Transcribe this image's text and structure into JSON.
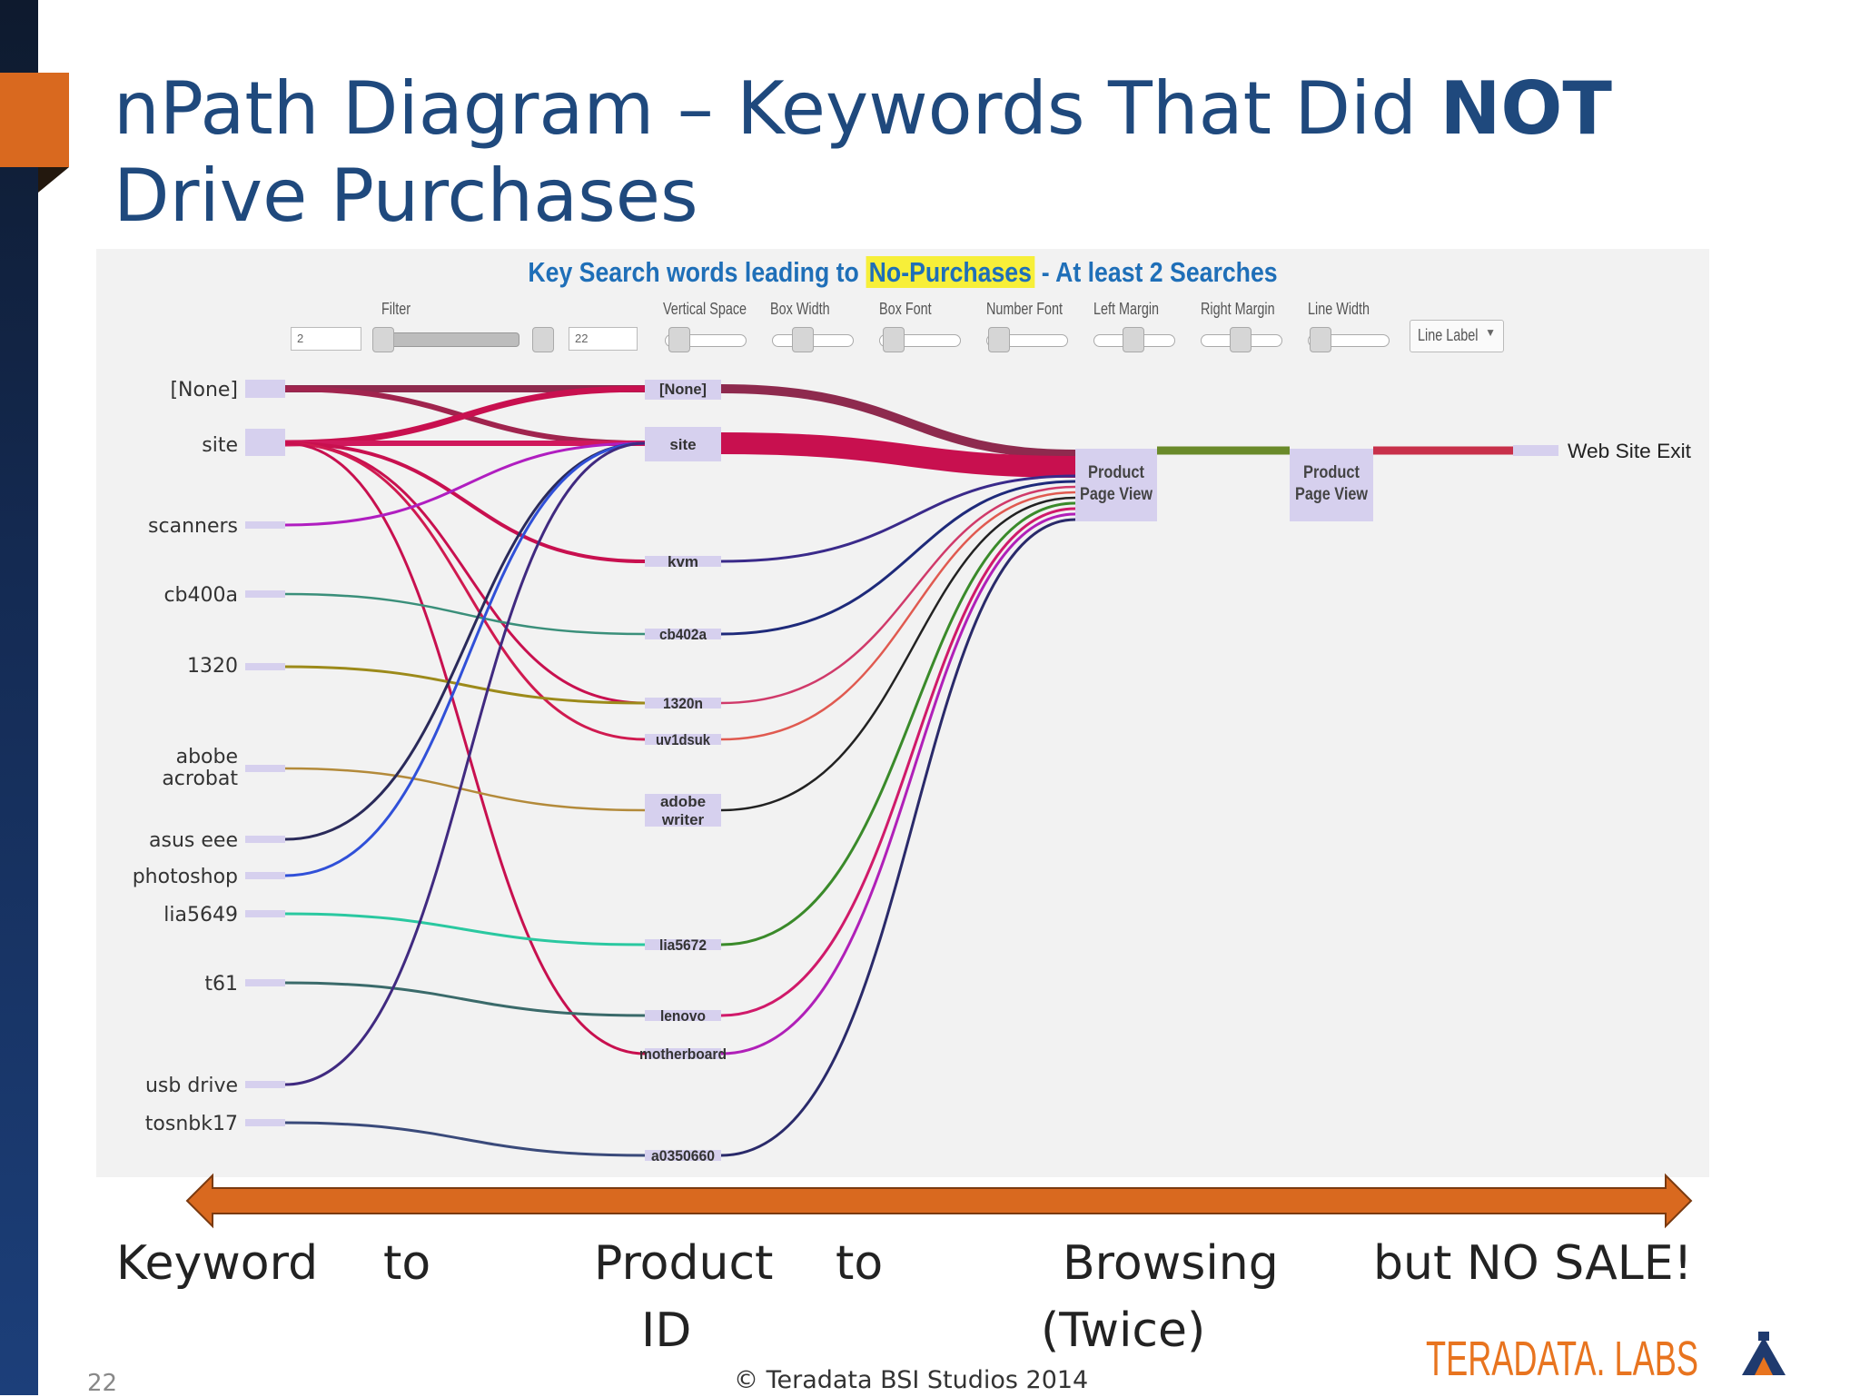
{
  "slide": {
    "title_part1": "nPath Diagram – Keywords That Did ",
    "title_bold": "NOT",
    "title_part2": "Drive Purchases",
    "page_number": "22",
    "copyright": "© Teradata BSI Studios 2014",
    "logo_text": "TERADATA. LABS"
  },
  "chart": {
    "title_part1": "Key Search words leading to ",
    "title_highlight": "No-Purchases",
    "title_part2": " - At least 2 Searches"
  },
  "controls": {
    "filter_label": "Filter",
    "filter_min": "2",
    "filter_max": "22",
    "sliders": [
      "Vertical Space",
      "Box Width",
      "Box Font",
      "Number Font",
      "Left Margin",
      "Right Margin",
      "Line Width"
    ],
    "dropdown": "Line Label"
  },
  "keywords": [
    "[None]",
    "site",
    "scanners",
    "cb400a",
    "1320",
    "abobe",
    "acrobat",
    "asus eee",
    "photoshop",
    "lia5649",
    "t61",
    "usb drive",
    "tosnbk17"
  ],
  "products": [
    "[None]",
    "site",
    "kvm",
    "cb402a",
    "1320n",
    "uv1dsuk",
    "adobe",
    "writer",
    "lia5672",
    "lenovo",
    "motherboard",
    "a0350660"
  ],
  "browse": {
    "first_line1": "Product",
    "first_line2": "Page View",
    "second_line1": "Product",
    "second_line2": "Page View",
    "exit": "Web Site Exit"
  },
  "stages": {
    "keyword": "Keyword",
    "to1": "to",
    "product": "Product",
    "id": "ID",
    "to2": "to",
    "browsing": "Browsing",
    "twice": "(Twice)",
    "no_sale": "but NO SALE!"
  },
  "colors": {
    "accent_orange": "#d9691f",
    "title_blue": "#1f497d",
    "crimson": "#c8104f",
    "highlight_yellow": "#f7ef39"
  }
}
